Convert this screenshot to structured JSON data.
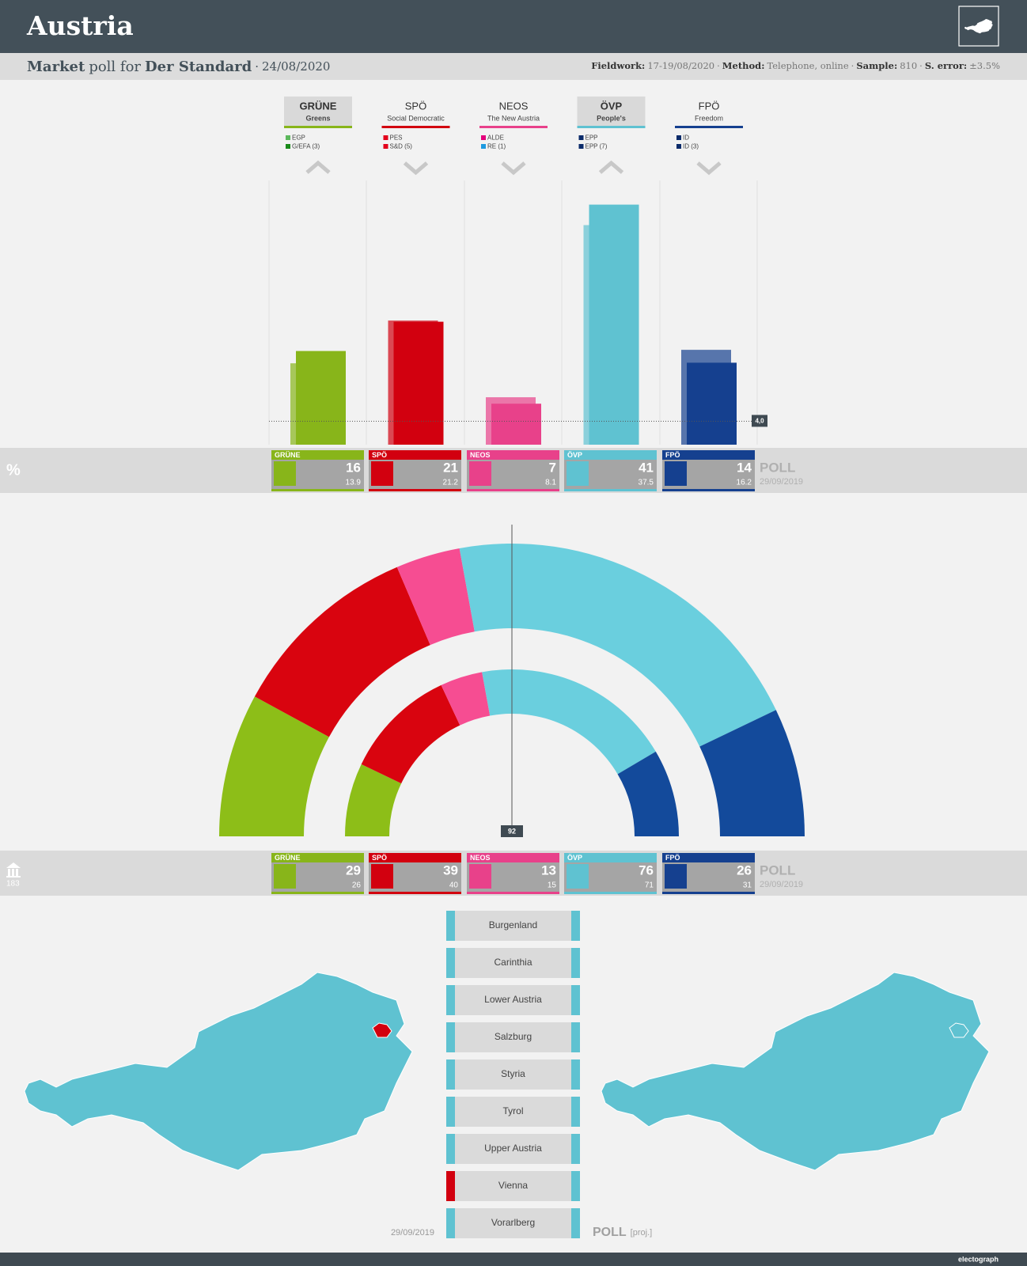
{
  "header": {
    "title": "Austria",
    "pollster": "Market",
    "connector": "poll for",
    "client": "Der Standard",
    "separator": "·",
    "date": "24/08/2020",
    "fieldwork_label": "Fieldwork:",
    "fieldwork": "17-19/08/2020",
    "method_label": "Method:",
    "method": "Telephone, online",
    "sample_label": "Sample:",
    "sample": "810",
    "error_label": "S. error:",
    "error": "±3.5%"
  },
  "parties": [
    {
      "family": "Greens",
      "groups": [
        {
          "label": "EGP",
          "color": "#5cb85c"
        },
        {
          "label": "G/EFA (3)",
          "color": "#1a8a1a"
        }
      ]
    },
    {
      "family": "Social Democratic",
      "groups": [
        {
          "label": "PES",
          "color": "#e3001b"
        },
        {
          "label": "S&D (5)",
          "color": "#e3001b"
        }
      ]
    },
    {
      "family": "The New Austria",
      "groups": [
        {
          "label": "ALDE",
          "color": "#e4007c"
        },
        {
          "label": "RE (1)",
          "color": "#1e9ae0"
        }
      ]
    },
    {
      "family": "People's",
      "groups": [
        {
          "label": "EPP",
          "color": "#0b2b6a"
        },
        {
          "label": "EPP (7)",
          "color": "#0b2b6a"
        }
      ]
    },
    {
      "family": "Freedom",
      "groups": [
        {
          "label": "ID",
          "color": "#0b2b6a"
        },
        {
          "label": "ID (3)",
          "color": "#0b2b6a"
        }
      ]
    }
  ],
  "chart_data": [
    {
      "type": "bar",
      "unit_label": "%",
      "categories": [
        "GRÜNE",
        "SPÖ",
        "NEOS",
        "ÖVP",
        "FPÖ"
      ],
      "colors": [
        "#88b51a",
        "#d2000f",
        "#e8418a",
        "#5fc2d1",
        "#15408f"
      ],
      "series": [
        {
          "name": "POLL",
          "values": [
            16,
            21,
            7,
            41,
            14
          ]
        },
        {
          "name": "29/09/2019",
          "values": [
            13.9,
            21.2,
            8.1,
            37.5,
            16.2
          ]
        }
      ],
      "threshold": {
        "value": 4,
        "label": "4,0"
      }
    },
    {
      "type": "parliament",
      "total": 183,
      "majority": 92,
      "categories": [
        "GRÜNE",
        "SPÖ",
        "NEOS",
        "ÖVP",
        "FPÖ"
      ],
      "colors": [
        "#8dbe18",
        "#d9040f",
        "#f64d92",
        "#6acfde",
        "#134a9b"
      ],
      "series": [
        {
          "name": "POLL",
          "values": [
            29,
            39,
            13,
            76,
            26
          ]
        },
        {
          "name": "29/09/2019",
          "values": [
            26,
            40,
            15,
            71,
            31
          ]
        }
      ]
    }
  ],
  "regions": {
    "previous_date": "29/09/2019",
    "poll_label": "POLL",
    "poll_note": "[proj.]",
    "items": [
      {
        "name": "Burgenland",
        "previous": "ÖVP",
        "poll": "ÖVP"
      },
      {
        "name": "Carinthia",
        "previous": "ÖVP",
        "poll": "ÖVP"
      },
      {
        "name": "Lower Austria",
        "previous": "ÖVP",
        "poll": "ÖVP"
      },
      {
        "name": "Salzburg",
        "previous": "ÖVP",
        "poll": "ÖVP"
      },
      {
        "name": "Styria",
        "previous": "ÖVP",
        "poll": "ÖVP"
      },
      {
        "name": "Tyrol",
        "previous": "ÖVP",
        "poll": "ÖVP"
      },
      {
        "name": "Upper Austria",
        "previous": "ÖVP",
        "poll": "ÖVP"
      },
      {
        "name": "Vienna",
        "previous": "SPÖ",
        "poll": "ÖVP"
      },
      {
        "name": "Vorarlberg",
        "previous": "ÖVP",
        "poll": "ÖVP"
      }
    ]
  },
  "footer": {
    "brand": "electograph"
  }
}
